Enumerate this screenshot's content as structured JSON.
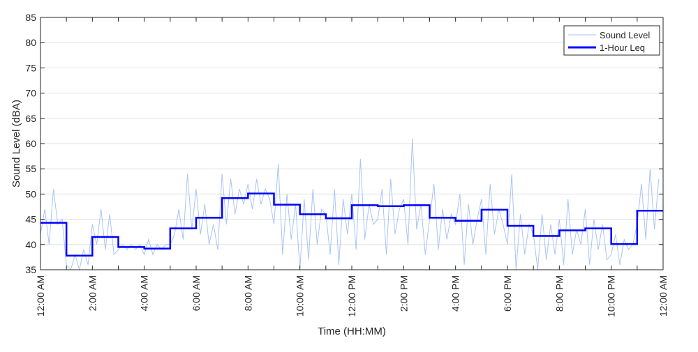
{
  "chart_data": {
    "type": "line",
    "title": "",
    "xlabel": "Time (HH:MM)",
    "ylabel": "Sound Level (dBA)",
    "xlim_hours": [
      0,
      24
    ],
    "ylim": [
      35,
      85
    ],
    "yticks": [
      35,
      40,
      45,
      50,
      55,
      60,
      65,
      70,
      75,
      80,
      85
    ],
    "xticks": [
      {
        "hour": 0,
        "label": "12:00 AM"
      },
      {
        "hour": 2,
        "label": "2:00 AM"
      },
      {
        "hour": 4,
        "label": "4:00 AM"
      },
      {
        "hour": 6,
        "label": "6:00 AM"
      },
      {
        "hour": 8,
        "label": "8:00 AM"
      },
      {
        "hour": 10,
        "label": "10:00 AM"
      },
      {
        "hour": 12,
        "label": "12:00 PM"
      },
      {
        "hour": 14,
        "label": "2:00 PM"
      },
      {
        "hour": 16,
        "label": "4:00 PM"
      },
      {
        "hour": 18,
        "label": "6:00 PM"
      },
      {
        "hour": 20,
        "label": "8:00 PM"
      },
      {
        "hour": 22,
        "label": "10:00 PM"
      },
      {
        "hour": 24,
        "label": "12:00 AM"
      }
    ],
    "grid": "horizontal",
    "legend": {
      "placement": "top-right",
      "entries": [
        "Sound Level",
        "1-Hour Leq"
      ]
    },
    "series": [
      {
        "name": "Sound Level",
        "color": "#a9c4f5",
        "interval_minutes": 10,
        "values": [
          42,
          47,
          40,
          51,
          44,
          45,
          36,
          35,
          38,
          35,
          39,
          36,
          44,
          40,
          47,
          39,
          46,
          38,
          39,
          40,
          39,
          40,
          39,
          40,
          38,
          41,
          38,
          40,
          39,
          40,
          40,
          42,
          47,
          41,
          54,
          43,
          51,
          42,
          48,
          40,
          44,
          39,
          54,
          44,
          53,
          46,
          51,
          48,
          52,
          47,
          53,
          48,
          51,
          49,
          44,
          56,
          38,
          50,
          41,
          48,
          35,
          49,
          37,
          51,
          40,
          47,
          46,
          38,
          51,
          36,
          49,
          42,
          50,
          39,
          57,
          41,
          48,
          44,
          45,
          51,
          38,
          53,
          42,
          47,
          49,
          40,
          61,
          43,
          48,
          38,
          45,
          52,
          39,
          47,
          41,
          46,
          44,
          50,
          36,
          48,
          40,
          45,
          49,
          38,
          52,
          42,
          47,
          44,
          40,
          54,
          35,
          46,
          38,
          44,
          42,
          35,
          46,
          37,
          44,
          38,
          45,
          36,
          49,
          38,
          43,
          40,
          47,
          36,
          45,
          39,
          44,
          37,
          38,
          42,
          36,
          41,
          39,
          40,
          44,
          52,
          41,
          55,
          43,
          53
        ]
      },
      {
        "name": "1-Hour Leq",
        "color": "#0000ff",
        "interval_minutes": 60,
        "values": [
          44.3,
          37.8,
          41.5,
          39.5,
          39.2,
          43.2,
          45.3,
          49.2,
          50.1,
          47.9,
          46.0,
          45.2,
          47.8,
          47.6,
          47.8,
          45.3,
          44.7,
          46.9,
          43.7,
          41.7,
          42.8,
          43.2,
          40.1,
          46.7
        ]
      }
    ]
  }
}
